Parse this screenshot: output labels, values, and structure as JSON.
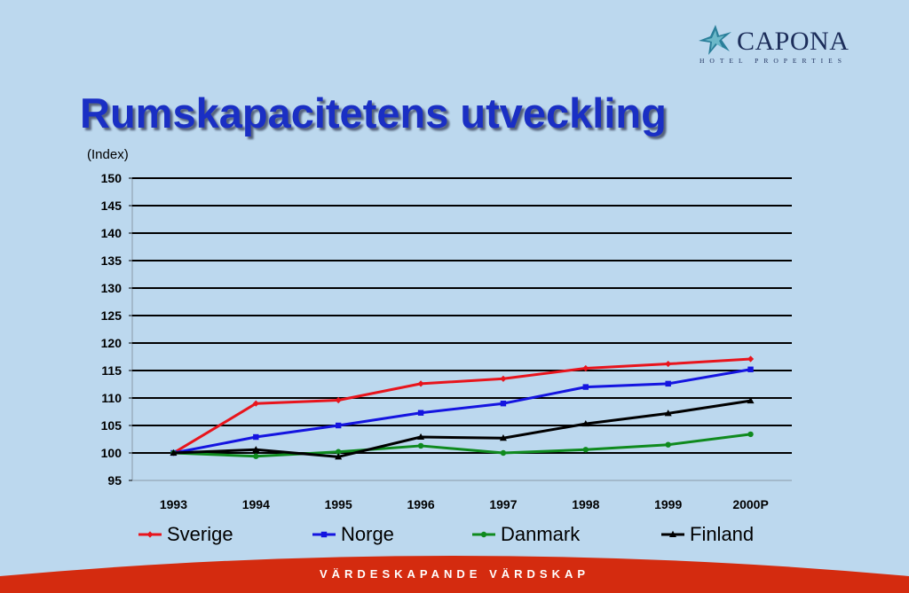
{
  "logo": {
    "name": "CAPONA",
    "tagline": "HOTEL PROPERTIES"
  },
  "title": "Rumskapacitetens utveckling",
  "unit_label": "(Index)",
  "footer": "VÄRDESKAPANDE VÄRDSKAP",
  "colors": {
    "background": "#bcd8ee",
    "title": "#1a2fc4",
    "footer": "#d42b0f"
  },
  "chart_data": {
    "type": "line",
    "categories": [
      "1993",
      "1994",
      "1995",
      "1996",
      "1997",
      "1998",
      "1999",
      "2000P"
    ],
    "ylim": [
      95,
      150
    ],
    "yticks": [
      95,
      100,
      105,
      110,
      115,
      120,
      125,
      130,
      135,
      140,
      145,
      150
    ],
    "grid": true,
    "legend_position": "bottom",
    "series": [
      {
        "name": "Sverige",
        "color": "#e8141c",
        "marker": "diamond",
        "values": [
          100,
          109.0,
          109.6,
          112.6,
          113.5,
          115.4,
          116.2,
          117.1
        ]
      },
      {
        "name": "Norge",
        "color": "#1414e0",
        "marker": "square",
        "values": [
          100,
          102.9,
          105.0,
          107.3,
          109.0,
          112.0,
          112.6,
          115.2
        ]
      },
      {
        "name": "Danmark",
        "color": "#0f8a1e",
        "marker": "circle",
        "values": [
          100,
          99.4,
          100.2,
          101.3,
          100.0,
          100.6,
          101.5,
          103.4
        ]
      },
      {
        "name": "Finland",
        "color": "#000000",
        "marker": "triangle",
        "values": [
          100,
          100.6,
          99.3,
          102.9,
          102.7,
          105.3,
          107.2,
          109.5
        ]
      }
    ]
  }
}
